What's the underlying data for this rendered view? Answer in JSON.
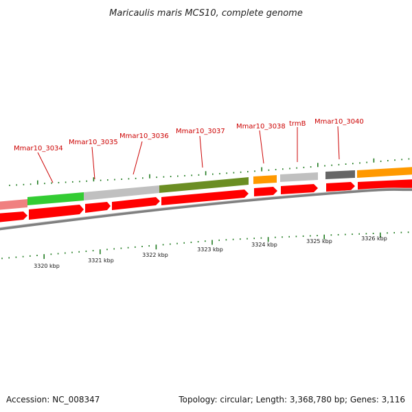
{
  "title": "Maricaulis maris MCS10, complete genome",
  "footer": {
    "accession": "Accession: NC_008347",
    "topology": "Topology: circular; Length: 3,368,780 bp; Genes: 3,116"
  },
  "genes": [
    {
      "label": "Mmar10_3034",
      "fill": "#33cc33"
    },
    {
      "label": "Mmar10_3035",
      "fill": "#c0c0c0"
    },
    {
      "label": "Mmar10_3036",
      "fill": "#c0c0c0"
    },
    {
      "label": "Mmar10_3037",
      "fill": "#6b8e23"
    },
    {
      "label": "Mmar10_3038",
      "fill": "#ff9900"
    },
    {
      "label": "trmB",
      "fill": "#c0c0c0"
    },
    {
      "label": "Mmar10_3040",
      "fill": "#666666"
    }
  ],
  "kbp_labels": [
    "3320 kbp",
    "3321 kbp",
    "3322 kbp",
    "3323 kbp",
    "3324 kbp",
    "3325 kbp",
    "3326 kbp"
  ],
  "colors": {
    "cds": "#ff0000",
    "backbone": "#808080",
    "tick": "#1e7a1e",
    "label": "#cc0000"
  }
}
